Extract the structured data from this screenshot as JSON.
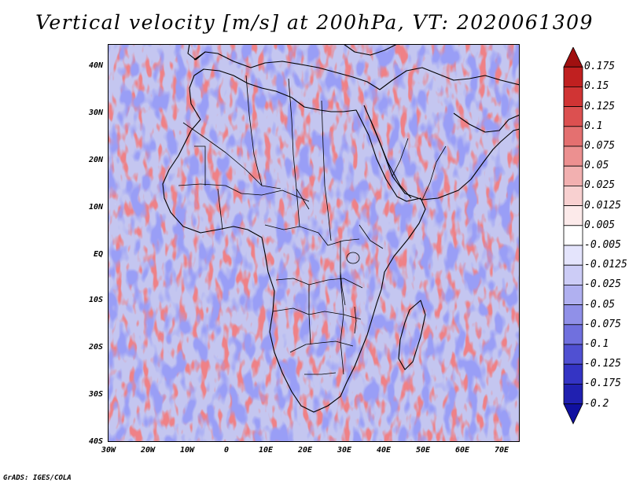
{
  "title": "Vertical velocity [m/s] at 200hPa, VT: 2020061309",
  "footer": "GrADS: IGES/COLA",
  "lat_labels": [
    "40N",
    "30N",
    "20N",
    "10N",
    "EQ",
    "10S",
    "20S",
    "30S",
    "40S"
  ],
  "lon_labels": [
    "30W",
    "20W",
    "10W",
    "0",
    "10E",
    "20E",
    "30E",
    "40E",
    "50E",
    "60E",
    "70E"
  ],
  "colorbar": {
    "labels": [
      "0.175",
      "0.15",
      "0.125",
      "0.1",
      "0.075",
      "0.05",
      "0.025",
      "0.0125",
      "0.005",
      "-0.005",
      "-0.0125",
      "-0.025",
      "-0.05",
      "-0.075",
      "-0.1",
      "-0.125",
      "-0.175",
      "-0.2"
    ],
    "colors": [
      "#a01010",
      "#c02020",
      "#d03434",
      "#dc5050",
      "#e47070",
      "#ec9090",
      "#f2b0b0",
      "#f8d0d0",
      "#fceaea",
      "#ffffff",
      "#e4e4fc",
      "#ccccf6",
      "#b0b0f0",
      "#9090e8",
      "#7070de",
      "#5050d2",
      "#3434c4",
      "#2020b0",
      "#1010a0"
    ]
  }
}
